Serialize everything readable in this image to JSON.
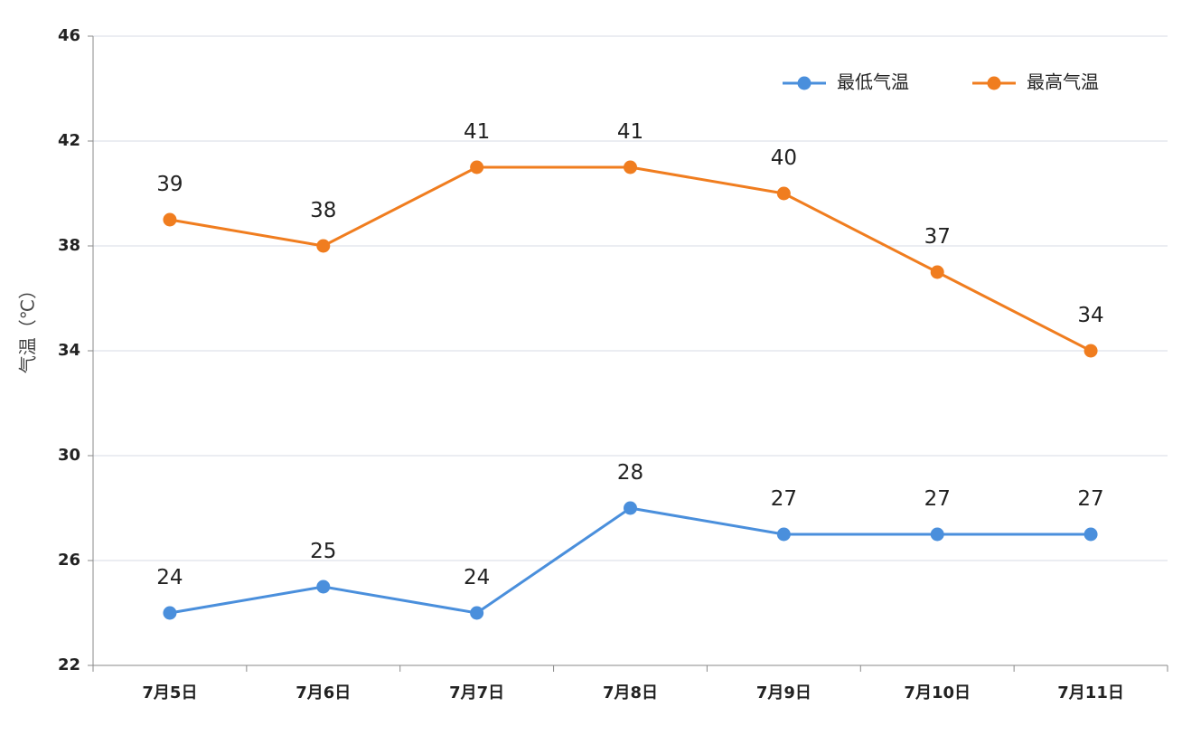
{
  "chart_data": {
    "type": "line",
    "categories": [
      "7月5日",
      "7月6日",
      "7月7日",
      "7月8日",
      "7月9日",
      "7月10日",
      "7月11日"
    ],
    "series": [
      {
        "name": "最低气温",
        "color": "#4a8fdc",
        "values": [
          24,
          25,
          24,
          28,
          27,
          27,
          27
        ]
      },
      {
        "name": "最高气温",
        "color": "#f07d1f",
        "values": [
          39,
          38,
          41,
          41,
          40,
          37,
          34
        ]
      }
    ],
    "title": "",
    "xlabel": "",
    "ylabel": "气温（℃）",
    "ylim": [
      22,
      46
    ],
    "yticks": [
      22,
      26,
      30,
      34,
      38,
      42,
      46
    ],
    "ytick_labels": [
      "22",
      "26",
      "30",
      "34",
      "38",
      "42",
      "46"
    ],
    "grid": true,
    "legend_position": "top-right",
    "data_labels": true
  }
}
